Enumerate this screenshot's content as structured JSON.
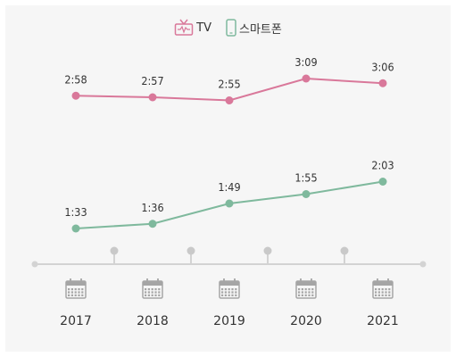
{
  "colors": {
    "tv": "#d9789a",
    "smartphone": "#7fb99d",
    "axis": "#d3d3d3",
    "calendar": "#a5a5a5",
    "label": "#333333"
  },
  "legend": {
    "tv": {
      "label": "TV",
      "icon": "tv-icon"
    },
    "smartphone": {
      "label": "스마트폰",
      "icon": "smartphone-icon"
    }
  },
  "chart_data": {
    "type": "line",
    "categories": [
      "2017",
      "2018",
      "2019",
      "2020",
      "2021"
    ],
    "category_icon": "calendar-icon",
    "series": [
      {
        "name": "TV",
        "key": "tv",
        "values": [
          "2:58",
          "2:57",
          "2:55",
          "3:09",
          "3:06"
        ]
      },
      {
        "name": "스마트폰",
        "key": "smartphone",
        "values": [
          "1:33",
          "1:36",
          "1:49",
          "1:55",
          "2:03"
        ]
      }
    ],
    "grid": false,
    "legend_position": "top-center"
  }
}
